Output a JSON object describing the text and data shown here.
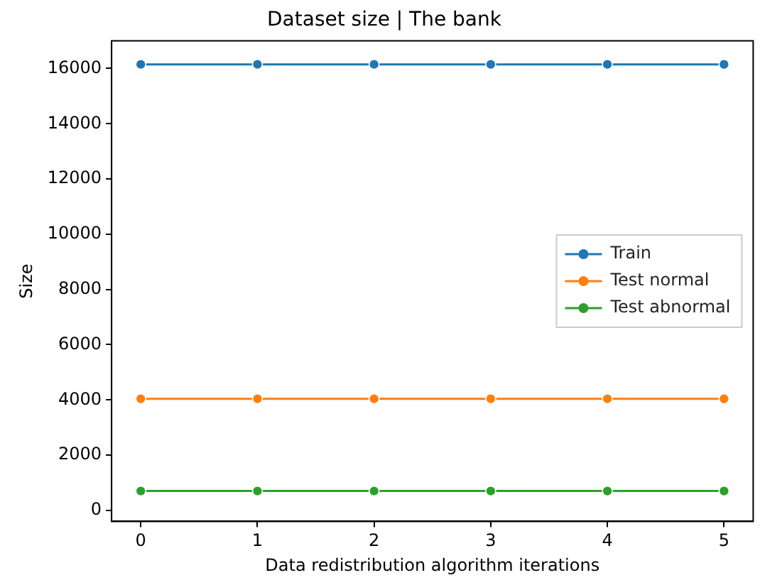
{
  "chart_data": {
    "type": "line",
    "title": "Dataset size | The bank",
    "xlabel": "Data redistribution algorithm iterations",
    "ylabel": "Size",
    "x": [
      0,
      1,
      2,
      3,
      4,
      5
    ],
    "series": [
      {
        "name": "Train",
        "color": "#1f77b4",
        "values": [
          16150,
          16150,
          16150,
          16150,
          16150,
          16150
        ]
      },
      {
        "name": "Test normal",
        "color": "#ff7f0e",
        "values": [
          4040,
          4040,
          4040,
          4040,
          4040,
          4040
        ]
      },
      {
        "name": "Test abnormal",
        "color": "#2ca02c",
        "values": [
          700,
          700,
          700,
          700,
          700,
          700
        ]
      }
    ],
    "xlim": [
      -0.25,
      5.25
    ],
    "xticks": [
      0,
      1,
      2,
      3,
      4,
      5
    ],
    "ylim": [
      -400,
      17000
    ],
    "yticks": [
      0,
      2000,
      4000,
      6000,
      8000,
      10000,
      12000,
      14000,
      16000
    ],
    "grid": false,
    "legend": "right",
    "marker": "circle",
    "line_style": "solid"
  }
}
